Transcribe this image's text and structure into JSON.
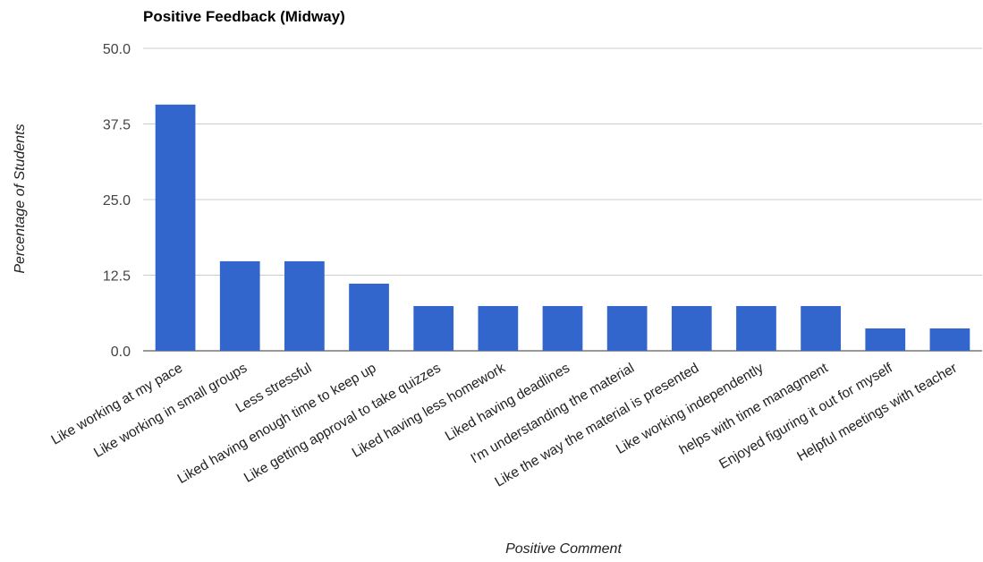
{
  "chart_data": {
    "type": "bar",
    "title": "Positive Feedback (Midway)",
    "xlabel": "Positive Comment",
    "ylabel": "Percentage of Students",
    "ylim": [
      0,
      50
    ],
    "yticks": [
      "0.0",
      "12.5",
      "25.0",
      "37.5",
      "50.0"
    ],
    "grid": true,
    "legend": "none",
    "color": "#3366cc",
    "categories": [
      "Like working at my pace",
      "Like working in small groups",
      "Less stressful",
      "Liked having enough time to keep up",
      "Like getting approval to take quizzes",
      "Liked having less homework",
      "Liked having deadlines",
      "I'm understanding the material",
      "Like the way the material is presented",
      "Like working independently",
      "helps with time managment",
      "Enjoyed figuring it out for myself",
      "Helpful meetings with teacher"
    ],
    "values": [
      40.7,
      14.8,
      14.8,
      11.1,
      7.4,
      7.4,
      7.4,
      7.4,
      7.4,
      7.4,
      7.4,
      3.7,
      3.7
    ]
  }
}
